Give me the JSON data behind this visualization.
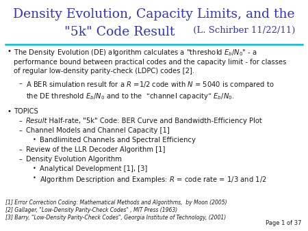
{
  "title_line1": "Density Evolution, Capacity Limits, and the",
  "title_line2": "\"5k\" Code Result",
  "title_author": " (L. Schirber 11/22/11)",
  "title_color": "#3333bb",
  "bg_color": "#ffffff",
  "line_color": "#00bbcc",
  "body_color": "#1a1a1a",
  "page_label": "Page 1 of 37",
  "ref1": "[1] Error Correction Coding: Mathematical Methods and Algorithms,  by Moon (2005)",
  "ref2": "[2] Gallager, \"Low-Density Parity-Check Codes\" , MIT Press (1963)",
  "ref3": "[3] Barry, \"Low-Density Parity-Check Codes\", Georgia Institute of Technology, (2001)"
}
